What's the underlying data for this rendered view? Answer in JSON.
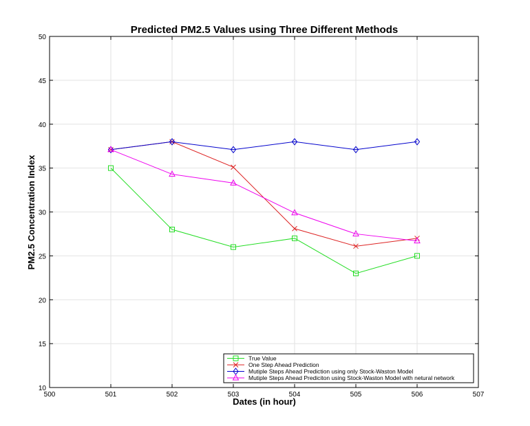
{
  "chart_data": {
    "type": "line",
    "title": "Predicted PM2.5 Values using Three Different Methods",
    "xlabel": "Dates (in hour)",
    "ylabel": "PM2.5 Concentration Index",
    "xlim": [
      500,
      507
    ],
    "ylim": [
      10,
      50
    ],
    "xticks": [
      500,
      501,
      502,
      503,
      504,
      505,
      506,
      507
    ],
    "yticks": [
      10,
      15,
      20,
      25,
      30,
      35,
      40,
      45,
      50
    ],
    "grid": true,
    "legend_position": "bottom-right",
    "x": [
      501,
      502,
      503,
      504,
      505,
      506
    ],
    "series": [
      {
        "name": "True Value",
        "color": "#22dd22",
        "marker": "square",
        "values": [
          35,
          28,
          26,
          27,
          23,
          25
        ]
      },
      {
        "name": "One Step Ahead Prediction",
        "color": "#dd2222",
        "marker": "x",
        "values": [
          37.1,
          38,
          35.1,
          28.1,
          26.1,
          27
        ]
      },
      {
        "name": "Mutiple Steps Ahead Prediction using only Stock-Waston Model",
        "color": "#0000cc",
        "marker": "diamond",
        "values": [
          37.1,
          38,
          37.1,
          38,
          37.1,
          38
        ]
      },
      {
        "name": "Mutiple Steps Ahead Prediciton using Stock-Waston Model with netural network",
        "color": "#ee00ee",
        "marker": "triangle",
        "values": [
          37.1,
          34.3,
          33.3,
          29.9,
          27.5,
          26.7
        ]
      }
    ]
  }
}
